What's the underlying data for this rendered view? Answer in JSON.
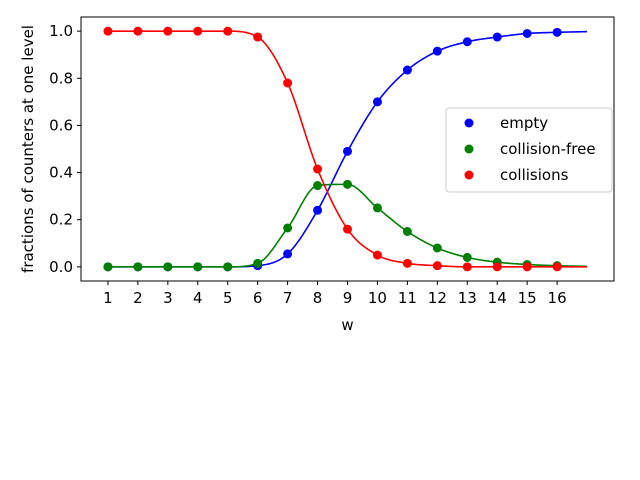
{
  "chart_data": {
    "type": "scatter",
    "title": "",
    "xlabel": "w",
    "ylabel": "fractions of counters at one level",
    "xlim": [
      0.1,
      17.9
    ],
    "ylim": [
      -0.06,
      1.06
    ],
    "x_ticks": [
      1,
      2,
      3,
      4,
      5,
      6,
      7,
      8,
      9,
      10,
      11,
      12,
      13,
      14,
      15,
      16
    ],
    "y_ticks": [
      "0.0",
      "0.2",
      "0.4",
      "0.6",
      "0.8",
      "1.0"
    ],
    "y_tick_values": [
      0.0,
      0.2,
      0.4,
      0.6,
      0.8,
      1.0
    ],
    "grid": false,
    "legend": "center-right",
    "x": [
      1,
      2,
      3,
      4,
      5,
      6,
      7,
      8,
      9,
      10,
      11,
      12,
      13,
      14,
      15,
      16
    ],
    "series": [
      {
        "name": "empty",
        "color": "#0000ff",
        "values": [
          0.0,
          0.0,
          0.0,
          0.0,
          0.0,
          0.005,
          0.055,
          0.24,
          0.49,
          0.7,
          0.835,
          0.915,
          0.955,
          0.975,
          0.99,
          0.995
        ]
      },
      {
        "name": "collision-free",
        "color": "#008000",
        "values": [
          0.0,
          0.0,
          0.0,
          0.0,
          0.0,
          0.015,
          0.165,
          0.345,
          0.35,
          0.25,
          0.15,
          0.08,
          0.04,
          0.02,
          0.01,
          0.005
        ]
      },
      {
        "name": "collisions",
        "color": "#ff0000",
        "values": [
          1.0,
          1.0,
          1.0,
          1.0,
          1.0,
          0.975,
          0.78,
          0.415,
          0.16,
          0.05,
          0.015,
          0.005,
          0.0,
          0.0,
          0.0,
          0.0
        ]
      }
    ],
    "curve_end_x": 17
  }
}
